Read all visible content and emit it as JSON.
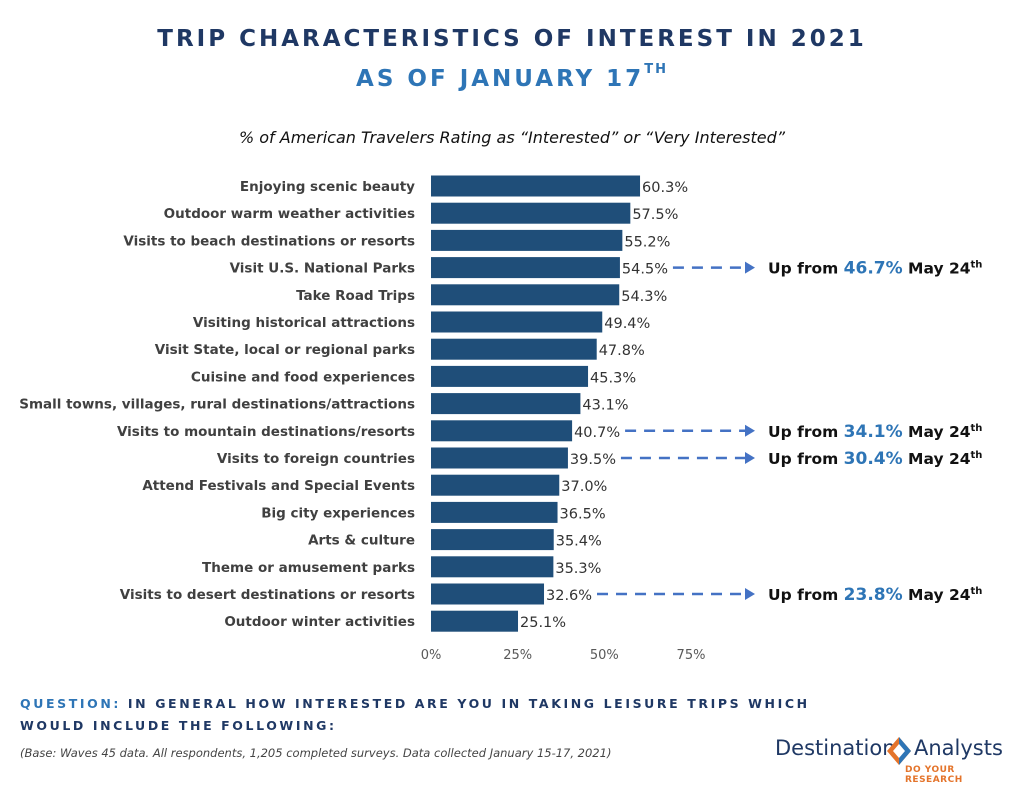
{
  "title": {
    "line1": "TRIP CHARACTERISTICS OF INTEREST IN 2021",
    "line2_main": "AS OF JANUARY 17",
    "line2_sup": "TH"
  },
  "chart_data": {
    "type": "bar",
    "orientation": "horizontal",
    "subtitle": "% of American Travelers Rating as “Interested” or “Very Interested”",
    "categories": [
      "Enjoying scenic beauty",
      "Outdoor warm weather activities",
      "Visits to beach destinations or resorts",
      "Visit U.S. National Parks",
      "Take Road Trips",
      "Visiting historical attractions",
      "Visit State, local or regional parks",
      "Cuisine and food experiences",
      "Small towns,  villages, rural destinations/attractions",
      "Visits to mountain destinations/resorts",
      "Visits to foreign countries",
      "Attend Festivals and Special Events",
      "Big city experiences",
      "Arts & culture",
      "Theme or amusement parks",
      "Visits to desert destinations or resorts",
      "Outdoor winter activities"
    ],
    "values": [
      60.3,
      57.5,
      55.2,
      54.5,
      54.3,
      49.4,
      47.8,
      45.3,
      43.1,
      40.7,
      39.5,
      37.0,
      36.5,
      35.4,
      35.3,
      32.6,
      25.1
    ],
    "value_labels": [
      "60.3%",
      "57.5%",
      "55.2%",
      "54.5%",
      "54.3%",
      "49.4%",
      "47.8%",
      "45.3%",
      "43.1%",
      "40.7%",
      "39.5%",
      "37.0%",
      "36.5%",
      "35.4%",
      "35.3%",
      "32.6%",
      "25.1%"
    ],
    "xlim": [
      0,
      75
    ],
    "x_ticks": [
      0,
      25,
      50,
      75
    ],
    "x_tick_labels": [
      "0%",
      "25%",
      "50%",
      "75%"
    ],
    "bar_color": "#1f4e79",
    "grid": false,
    "annotations": [
      {
        "category": "Visit U.S. National Parks",
        "prefix": "Up from ",
        "value": "46.7%",
        "suffix": " May 24",
        "suffix_sup": "th"
      },
      {
        "category": "Visits to mountain destinations/resorts",
        "prefix": "Up from ",
        "value": "34.1%",
        "suffix": " May 24",
        "suffix_sup": "th"
      },
      {
        "category": "Visits to foreign countries",
        "prefix": "Up from ",
        "value": "30.4%",
        "suffix": " May 24",
        "suffix_sup": "th"
      },
      {
        "category": "Visits to desert destinations or resorts",
        "prefix": "Up from ",
        "value": "23.8%",
        "suffix": " May 24",
        "suffix_sup": "th"
      }
    ],
    "annotation_highlight_color": "#2e75b6",
    "arrow_color": "#4472c4"
  },
  "footer": {
    "question_label": "QUESTION:",
    "question_text": " IN GENERAL HOW INTERESTED ARE YOU IN TAKING LEISURE TRIPS WHICH WOULD INCLUDE THE FOLLOWING:",
    "base_note": "(Base: Waves 45 data. All respondents, 1,205 completed surveys. Data collected January 15-17, 2021)"
  },
  "logo": {
    "word1": "Destination",
    "word2": "Analysts",
    "tagline": "DO YOUR RESEARCH",
    "icon": "diamond-logo-icon"
  }
}
